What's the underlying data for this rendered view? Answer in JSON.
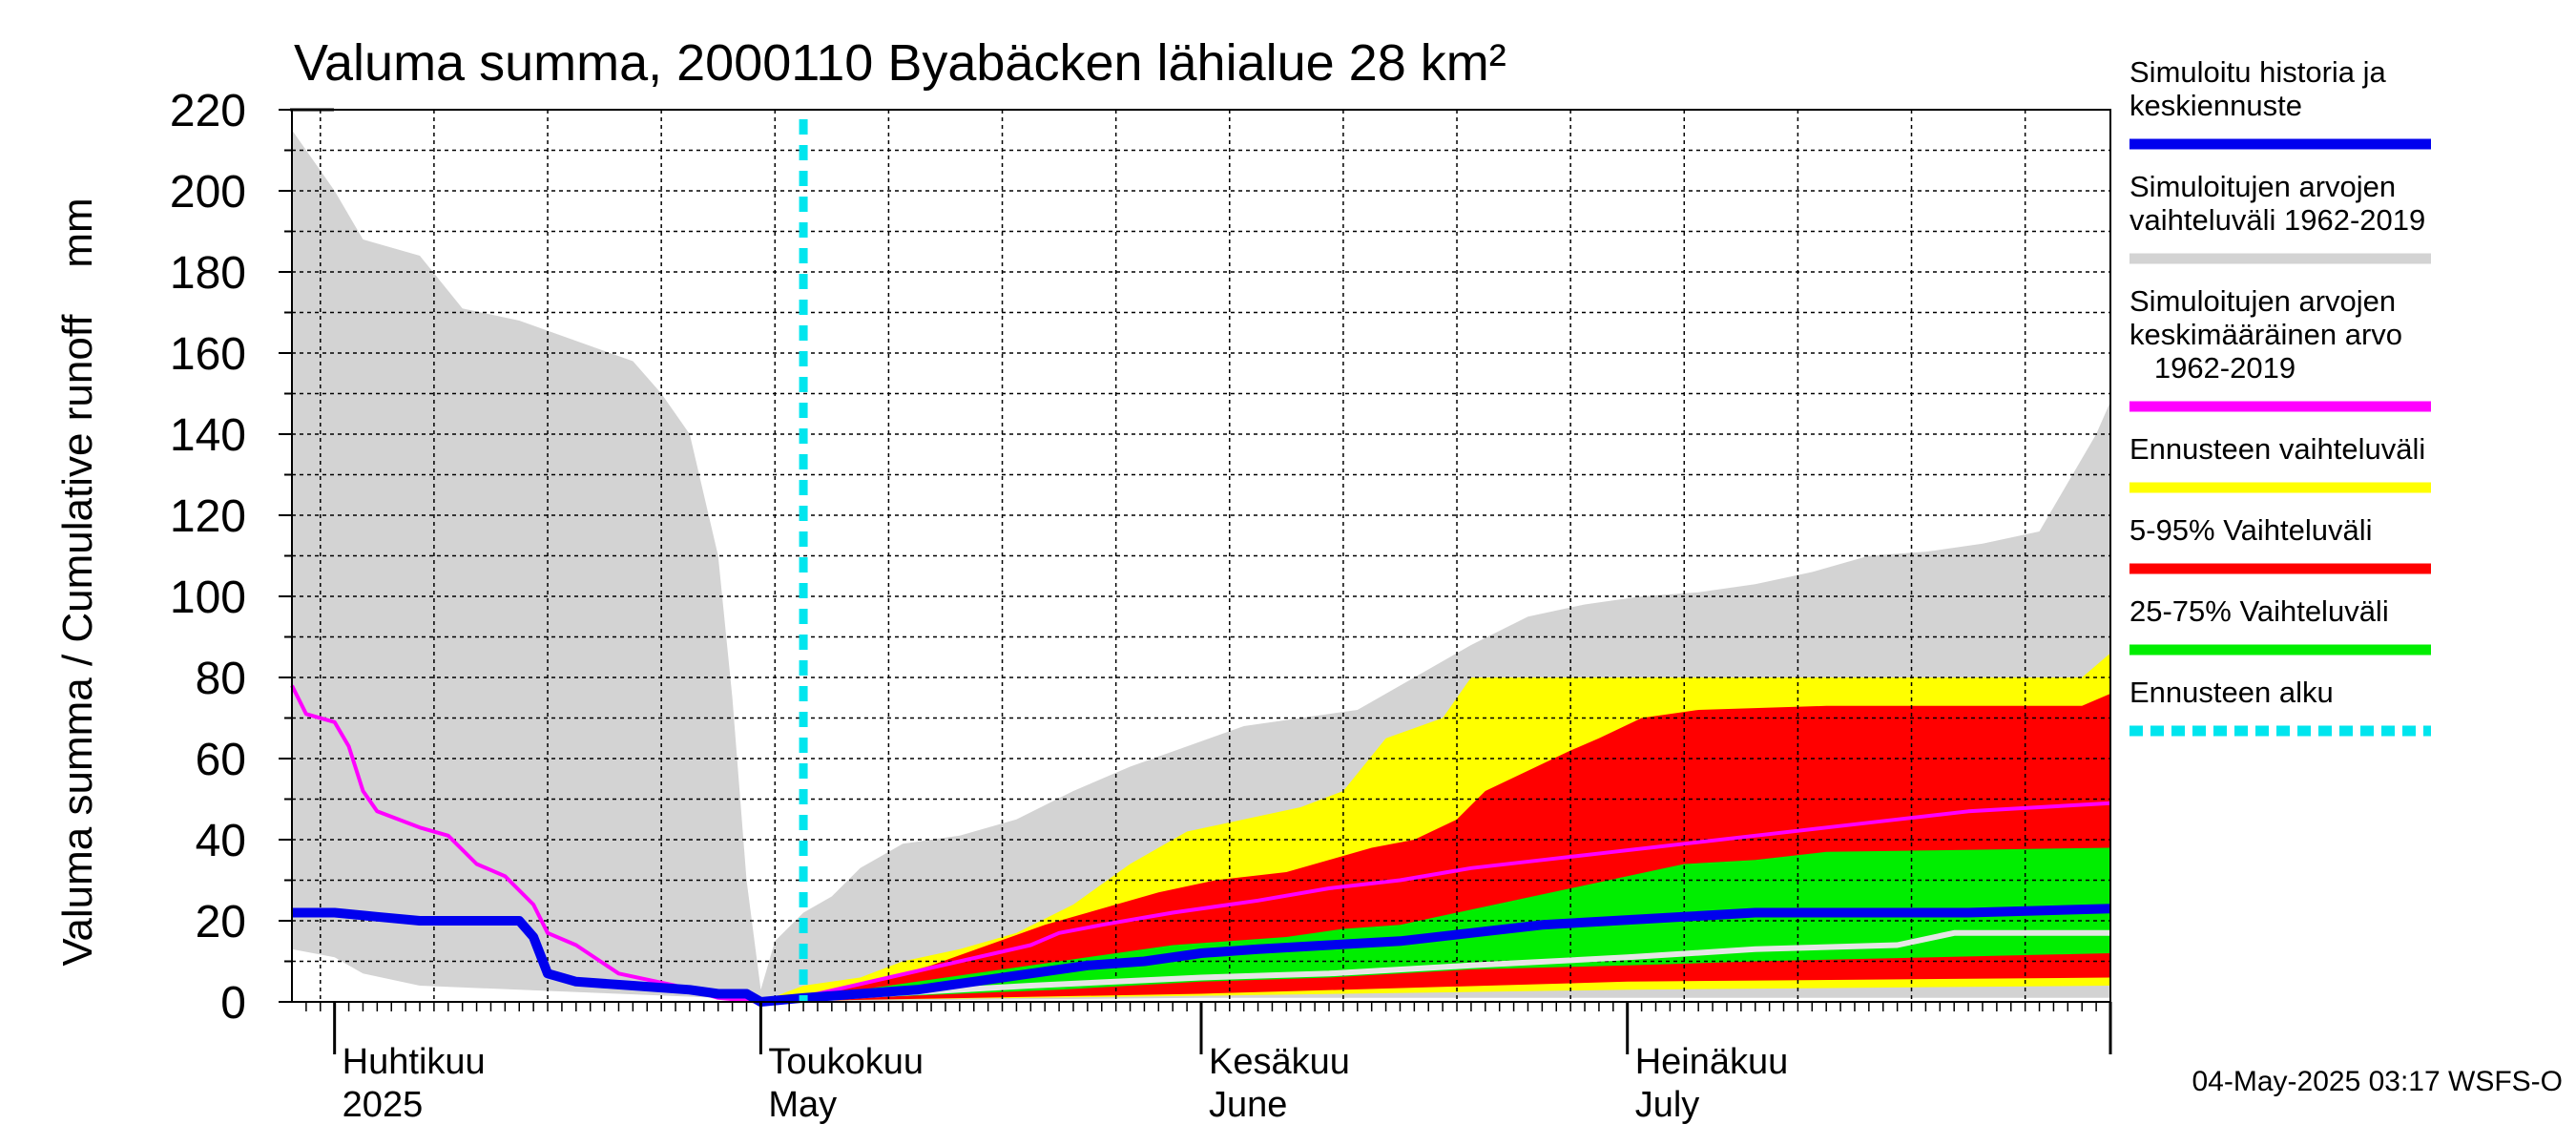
{
  "chart_data": {
    "type": "area",
    "title": "Valuma summa, 2000110 Byabäcken  lähialue 28 km²",
    "ylabel": "Valuma summa / Cumulative runoff    mm",
    "ylim": [
      0,
      220
    ],
    "yticks": [
      "0",
      "20",
      "40",
      "60",
      "80",
      "100",
      "120",
      "140",
      "160",
      "180",
      "200",
      "220"
    ],
    "xlim": [
      "2025-03-29",
      "2025-08-04"
    ],
    "month_labels": [
      {
        "fi": "Huhtikuu",
        "en": "2025",
        "date": "2025-04-01"
      },
      {
        "fi": "Toukokuu",
        "en": "May",
        "date": "2025-05-01"
      },
      {
        "fi": "Kesäkuu",
        "en": "June",
        "date": "2025-06-01"
      },
      {
        "fi": "Heinäkuu",
        "en": "July",
        "date": "2025-07-01"
      }
    ],
    "forecast_start": "2025-05-04",
    "grid": true,
    "legend_position": "right",
    "legend": [
      {
        "label_lines": [
          "Simuloitu historia ja",
          "keskiennuste"
        ],
        "color": "#0000ee"
      },
      {
        "label_lines": [
          "Simuloitujen arvojen",
          "vaihteluväli 1962-2019"
        ],
        "color": "#d3d3d3"
      },
      {
        "label_lines": [
          "Simuloitujen arvojen",
          "keskimääräinen arvo",
          "   1962-2019"
        ],
        "color": "#ff00ff"
      },
      {
        "label_lines": [
          "Ennusteen vaihteluväli"
        ],
        "color": "#ffff00"
      },
      {
        "label_lines": [
          "5-95% Vaihteluväli"
        ],
        "color": "#ff0000"
      },
      {
        "label_lines": [
          "25-75% Vaihteluväli"
        ],
        "color": "#00ee00"
      },
      {
        "label_lines": [
          "Ennusteen alku"
        ],
        "color": "#00e5ee"
      }
    ],
    "series": [
      {
        "key": "hist_range",
        "type": "band",
        "color": "#d3d3d3",
        "upper": [
          [
            "2025-03-29",
            215
          ],
          [
            "2025-04-01",
            200
          ],
          [
            "2025-04-03",
            188
          ],
          [
            "2025-04-07",
            184
          ],
          [
            "2025-04-10",
            171
          ],
          [
            "2025-04-14",
            168
          ],
          [
            "2025-04-18",
            163
          ],
          [
            "2025-04-22",
            158
          ],
          [
            "2025-04-24",
            150
          ],
          [
            "2025-04-26",
            140
          ],
          [
            "2025-04-28",
            110
          ],
          [
            "2025-04-29",
            75
          ],
          [
            "2025-04-30",
            30
          ],
          [
            "2025-05-01",
            3
          ],
          [
            "2025-05-02",
            15
          ],
          [
            "2025-05-04",
            22
          ],
          [
            "2025-05-06",
            26
          ],
          [
            "2025-05-08",
            33
          ],
          [
            "2025-05-11",
            39
          ],
          [
            "2025-05-15",
            41
          ],
          [
            "2025-05-19",
            45
          ],
          [
            "2025-05-23",
            52
          ],
          [
            "2025-05-27",
            58
          ],
          [
            "2025-05-31",
            63
          ],
          [
            "2025-06-04",
            68
          ],
          [
            "2025-06-08",
            70
          ],
          [
            "2025-06-12",
            72
          ],
          [
            "2025-06-16",
            80
          ],
          [
            "2025-06-20",
            88
          ],
          [
            "2025-06-24",
            95
          ],
          [
            "2025-06-28",
            98
          ],
          [
            "2025-07-02",
            100
          ],
          [
            "2025-07-06",
            101
          ],
          [
            "2025-07-10",
            103
          ],
          [
            "2025-07-14",
            106
          ],
          [
            "2025-07-18",
            110
          ],
          [
            "2025-07-22",
            111
          ],
          [
            "2025-07-26",
            113
          ],
          [
            "2025-07-30",
            116
          ],
          [
            "2025-08-01",
            128
          ],
          [
            "2025-08-03",
            140
          ],
          [
            "2025-08-04",
            148
          ]
        ],
        "lower": [
          [
            "2025-03-29",
            13
          ],
          [
            "2025-04-01",
            11
          ],
          [
            "2025-04-03",
            7
          ],
          [
            "2025-04-07",
            4
          ],
          [
            "2025-04-14",
            3
          ],
          [
            "2025-04-21",
            2
          ],
          [
            "2025-04-28",
            1
          ],
          [
            "2025-05-01",
            0
          ],
          [
            "2025-05-04",
            0
          ],
          [
            "2025-05-15",
            0.5
          ],
          [
            "2025-06-01",
            1
          ],
          [
            "2025-07-01",
            1
          ],
          [
            "2025-08-04",
            1
          ]
        ]
      },
      {
        "key": "forecast_range",
        "type": "band",
        "color": "#ffff00",
        "upper": [
          [
            "2025-05-01",
            0
          ],
          [
            "2025-05-04",
            4
          ],
          [
            "2025-05-08",
            6
          ],
          [
            "2025-05-11",
            10
          ],
          [
            "2025-05-15",
            13
          ],
          [
            "2025-05-19",
            17
          ],
          [
            "2025-05-23",
            24
          ],
          [
            "2025-05-27",
            34
          ],
          [
            "2025-05-31",
            42
          ],
          [
            "2025-06-04",
            45
          ],
          [
            "2025-06-08",
            48
          ],
          [
            "2025-06-11",
            52
          ],
          [
            "2025-06-14",
            65
          ],
          [
            "2025-06-18",
            70
          ],
          [
            "2025-06-20",
            80
          ],
          [
            "2025-07-01",
            80
          ],
          [
            "2025-07-15",
            80
          ],
          [
            "2025-08-02",
            80
          ],
          [
            "2025-08-04",
            86
          ]
        ],
        "lower": [
          [
            "2025-05-01",
            0
          ],
          [
            "2025-05-08",
            0.5
          ],
          [
            "2025-06-01",
            1.5
          ],
          [
            "2025-07-01",
            3
          ],
          [
            "2025-08-04",
            4
          ]
        ]
      },
      {
        "key": "p5_95",
        "type": "band",
        "color": "#ff0000",
        "upper": [
          [
            "2025-05-01",
            0
          ],
          [
            "2025-05-05",
            2
          ],
          [
            "2025-05-09",
            5
          ],
          [
            "2025-05-13",
            9
          ],
          [
            "2025-05-17",
            14
          ],
          [
            "2025-05-21",
            19
          ],
          [
            "2025-05-25",
            23
          ],
          [
            "2025-05-29",
            27
          ],
          [
            "2025-06-02",
            30
          ],
          [
            "2025-06-07",
            32
          ],
          [
            "2025-06-10",
            35
          ],
          [
            "2025-06-13",
            38
          ],
          [
            "2025-06-16",
            40
          ],
          [
            "2025-06-19",
            45
          ],
          [
            "2025-06-21",
            52
          ],
          [
            "2025-06-24",
            57
          ],
          [
            "2025-06-27",
            62
          ],
          [
            "2025-06-29",
            65
          ],
          [
            "2025-07-02",
            70
          ],
          [
            "2025-07-06",
            72
          ],
          [
            "2025-07-15",
            73
          ],
          [
            "2025-08-02",
            73
          ],
          [
            "2025-08-04",
            76
          ]
        ],
        "lower": [
          [
            "2025-05-01",
            0
          ],
          [
            "2025-05-08",
            0.5
          ],
          [
            "2025-06-01",
            2
          ],
          [
            "2025-07-01",
            5
          ],
          [
            "2025-08-04",
            6
          ]
        ]
      },
      {
        "key": "p25_75",
        "type": "band",
        "color": "#00ee00",
        "upper": [
          [
            "2025-05-01",
            0
          ],
          [
            "2025-05-06",
            2
          ],
          [
            "2025-05-10",
            4
          ],
          [
            "2025-05-14",
            6
          ],
          [
            "2025-05-18",
            8
          ],
          [
            "2025-05-22",
            10
          ],
          [
            "2025-05-26",
            12
          ],
          [
            "2025-05-30",
            14
          ],
          [
            "2025-06-03",
            15
          ],
          [
            "2025-06-07",
            16
          ],
          [
            "2025-06-11",
            18
          ],
          [
            "2025-06-15",
            19
          ],
          [
            "2025-06-19",
            22
          ],
          [
            "2025-06-23",
            25
          ],
          [
            "2025-06-27",
            28
          ],
          [
            "2025-07-01",
            31
          ],
          [
            "2025-07-05",
            34
          ],
          [
            "2025-07-10",
            35
          ],
          [
            "2025-07-15",
            37
          ],
          [
            "2025-08-04",
            38
          ]
        ],
        "lower": [
          [
            "2025-05-01",
            0
          ],
          [
            "2025-05-08",
            1
          ],
          [
            "2025-05-15",
            2
          ],
          [
            "2025-05-22",
            3
          ],
          [
            "2025-06-01",
            5
          ],
          [
            "2025-06-10",
            6
          ],
          [
            "2025-06-20",
            8
          ],
          [
            "2025-07-01",
            9
          ],
          [
            "2025-07-10",
            10
          ],
          [
            "2025-08-04",
            12
          ]
        ]
      },
      {
        "key": "mean_1962_2019",
        "type": "line",
        "color": "#ff00ff",
        "points": [
          [
            "2025-03-29",
            78
          ],
          [
            "2025-03-30",
            71
          ],
          [
            "2025-04-01",
            69
          ],
          [
            "2025-04-02",
            63
          ],
          [
            "2025-04-03",
            52
          ],
          [
            "2025-04-04",
            47
          ],
          [
            "2025-04-07",
            43
          ],
          [
            "2025-04-09",
            41
          ],
          [
            "2025-04-11",
            34
          ],
          [
            "2025-04-13",
            31
          ],
          [
            "2025-04-15",
            24
          ],
          [
            "2025-04-16",
            17
          ],
          [
            "2025-04-18",
            14
          ],
          [
            "2025-04-21",
            7
          ],
          [
            "2025-04-25",
            4
          ],
          [
            "2025-04-28",
            1
          ],
          [
            "2025-05-01",
            0
          ],
          [
            "2025-05-05",
            2
          ],
          [
            "2025-05-10",
            6
          ],
          [
            "2025-05-15",
            10
          ],
          [
            "2025-05-20",
            14
          ],
          [
            "2025-05-22",
            17
          ],
          [
            "2025-05-25",
            19
          ],
          [
            "2025-05-30",
            22
          ],
          [
            "2025-06-05",
            25
          ],
          [
            "2025-06-10",
            28
          ],
          [
            "2025-06-15",
            30
          ],
          [
            "2025-06-20",
            33
          ],
          [
            "2025-06-25",
            35
          ],
          [
            "2025-06-30",
            37
          ],
          [
            "2025-07-05",
            39
          ],
          [
            "2025-07-10",
            41
          ],
          [
            "2025-07-15",
            43
          ],
          [
            "2025-07-20",
            45
          ],
          [
            "2025-07-25",
            47
          ],
          [
            "2025-07-30",
            48
          ],
          [
            "2025-08-04",
            49
          ]
        ]
      },
      {
        "key": "grey_median",
        "type": "line",
        "color": "#e6e6e6",
        "points": [
          [
            "2025-05-01",
            0
          ],
          [
            "2025-05-10",
            2
          ],
          [
            "2025-05-20",
            4
          ],
          [
            "2025-06-01",
            6
          ],
          [
            "2025-06-10",
            7
          ],
          [
            "2025-06-20",
            9
          ],
          [
            "2025-07-01",
            11
          ],
          [
            "2025-07-10",
            13
          ],
          [
            "2025-07-20",
            14
          ],
          [
            "2025-07-24",
            17
          ],
          [
            "2025-08-04",
            17
          ]
        ]
      },
      {
        "key": "sim_history",
        "type": "line",
        "color": "#0000ee",
        "points": [
          [
            "2025-03-29",
            22
          ],
          [
            "2025-04-01",
            22
          ],
          [
            "2025-04-04",
            21
          ],
          [
            "2025-04-07",
            20
          ],
          [
            "2025-04-14",
            20
          ],
          [
            "2025-04-15",
            16
          ],
          [
            "2025-04-16",
            7
          ],
          [
            "2025-04-18",
            5
          ],
          [
            "2025-04-22",
            4
          ],
          [
            "2025-04-26",
            3
          ],
          [
            "2025-04-28",
            2
          ],
          [
            "2025-04-30",
            2
          ],
          [
            "2025-05-01",
            0
          ],
          [
            "2025-05-04",
            1
          ],
          [
            "2025-05-08",
            2
          ],
          [
            "2025-05-12",
            3
          ],
          [
            "2025-05-16",
            5
          ],
          [
            "2025-05-20",
            7
          ],
          [
            "2025-05-24",
            9
          ],
          [
            "2025-05-28",
            10
          ],
          [
            "2025-06-01",
            12
          ],
          [
            "2025-06-05",
            13
          ],
          [
            "2025-06-10",
            14
          ],
          [
            "2025-06-15",
            15
          ],
          [
            "2025-06-20",
            17
          ],
          [
            "2025-06-25",
            19
          ],
          [
            "2025-06-30",
            20
          ],
          [
            "2025-07-05",
            21
          ],
          [
            "2025-07-10",
            22
          ],
          [
            "2025-07-15",
            22
          ],
          [
            "2025-07-25",
            22
          ],
          [
            "2025-08-04",
            23
          ]
        ]
      }
    ]
  },
  "footer": "04-May-2025 03:17 WSFS-O"
}
